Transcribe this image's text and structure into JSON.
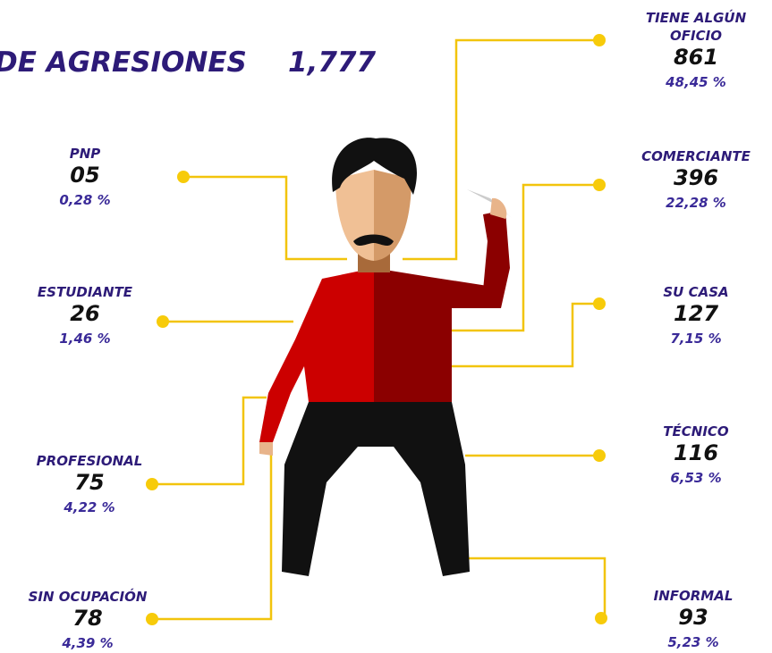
{
  "header": {
    "title": "DE AGRESIONES",
    "total": "1,777"
  },
  "items": [
    {
      "label": [
        "TIENE ALGÚN",
        "OFICIO"
      ],
      "count": "861",
      "percent": "48,45 %"
    },
    {
      "label": [
        "PNP"
      ],
      "count": "05",
      "percent": "0,28 %"
    },
    {
      "label": [
        "COMERCIANTE"
      ],
      "count": "396",
      "percent": "22,28 %"
    },
    {
      "label": [
        "ESTUDIANTE"
      ],
      "count": "26",
      "percent": "1,46 %"
    },
    {
      "label": [
        "SU CASA"
      ],
      "count": "127",
      "percent": "7,15 %"
    },
    {
      "label": [
        "PROFESIONAL"
      ],
      "count": "75",
      "percent": "4,22 %"
    },
    {
      "label": [
        "TÉCNICO"
      ],
      "count": "116",
      "percent": "6,53 %"
    },
    {
      "label": [
        "SIN OCUPACIÓN"
      ],
      "count": "78",
      "percent": "4,39 %"
    },
    {
      "label": [
        "INFORMAL"
      ],
      "count": "93",
      "percent": "5,23 %"
    }
  ]
}
